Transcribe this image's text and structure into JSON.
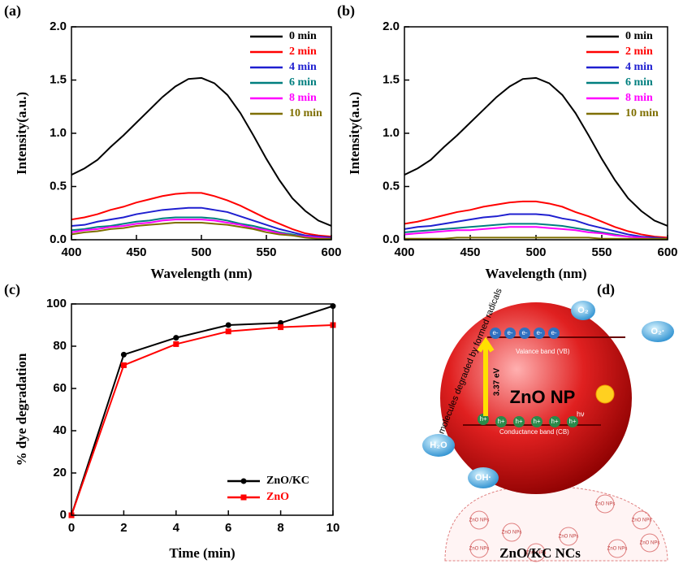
{
  "chart_data": [
    {
      "type": "line",
      "panel_label": "(a)",
      "xlabel": "Wavelength (nm)",
      "ylabel": "Intensity(a.u.)",
      "xlim": [
        400,
        600
      ],
      "ylim": [
        0,
        2.0
      ],
      "xticks": [
        400,
        450,
        500,
        550,
        600
      ],
      "yticks": [
        {
          "value": 0,
          "label": "0.0"
        },
        {
          "value": 0.5,
          "label": "0.5"
        },
        {
          "value": 1.0,
          "label": "1.0"
        },
        {
          "value": 1.5,
          "label": "1.5"
        },
        {
          "value": 2.0,
          "label": "2.0"
        }
      ],
      "legend": "upper right",
      "x": [
        400,
        410,
        420,
        430,
        440,
        450,
        460,
        470,
        480,
        490,
        500,
        510,
        520,
        530,
        540,
        550,
        560,
        570,
        580,
        590,
        600
      ],
      "series": [
        {
          "name": "0 min",
          "color": "#000000",
          "values": [
            0.61,
            0.67,
            0.75,
            0.87,
            0.98,
            1.1,
            1.22,
            1.34,
            1.44,
            1.51,
            1.52,
            1.47,
            1.36,
            1.19,
            0.98,
            0.76,
            0.56,
            0.39,
            0.27,
            0.18,
            0.13
          ]
        },
        {
          "name": "2 min",
          "color": "#ff0000",
          "values": [
            0.19,
            0.21,
            0.24,
            0.28,
            0.31,
            0.35,
            0.38,
            0.41,
            0.43,
            0.44,
            0.44,
            0.41,
            0.37,
            0.32,
            0.26,
            0.2,
            0.15,
            0.1,
            0.06,
            0.04,
            0.03
          ]
        },
        {
          "name": "4 min",
          "color": "#1f1fd0",
          "values": [
            0.13,
            0.14,
            0.17,
            0.19,
            0.21,
            0.24,
            0.26,
            0.28,
            0.29,
            0.3,
            0.3,
            0.28,
            0.26,
            0.22,
            0.18,
            0.14,
            0.1,
            0.07,
            0.04,
            0.03,
            0.02
          ]
        },
        {
          "name": "6 min",
          "color": "#007f7f",
          "values": [
            0.09,
            0.1,
            0.12,
            0.13,
            0.15,
            0.17,
            0.18,
            0.2,
            0.21,
            0.21,
            0.21,
            0.2,
            0.18,
            0.15,
            0.13,
            0.1,
            0.07,
            0.05,
            0.03,
            0.02,
            0.01
          ]
        },
        {
          "name": "8 min",
          "color": "#ff00ff",
          "values": [
            0.07,
            0.09,
            0.1,
            0.12,
            0.13,
            0.15,
            0.16,
            0.18,
            0.19,
            0.19,
            0.19,
            0.18,
            0.16,
            0.14,
            0.11,
            0.09,
            0.06,
            0.04,
            0.03,
            0.02,
            0.01
          ]
        },
        {
          "name": "10 min",
          "color": "#7f6f00",
          "values": [
            0.05,
            0.07,
            0.08,
            0.1,
            0.11,
            0.13,
            0.14,
            0.15,
            0.16,
            0.16,
            0.16,
            0.15,
            0.14,
            0.12,
            0.1,
            0.07,
            0.05,
            0.04,
            0.02,
            0.01,
            0.01
          ]
        }
      ]
    },
    {
      "type": "line",
      "panel_label": "(b)",
      "xlabel": "Wavelength (nm)",
      "ylabel": "Intensity(a.u.)",
      "xlim": [
        400,
        600
      ],
      "ylim": [
        0,
        2.0
      ],
      "xticks": [
        400,
        450,
        500,
        550,
        600
      ],
      "yticks": [
        {
          "value": 0,
          "label": "0.0"
        },
        {
          "value": 0.5,
          "label": "0.5"
        },
        {
          "value": 1.0,
          "label": "1.0"
        },
        {
          "value": 1.5,
          "label": "1.5"
        },
        {
          "value": 2.0,
          "label": "2.0"
        }
      ],
      "legend": "upper right",
      "x": [
        400,
        410,
        420,
        430,
        440,
        450,
        460,
        470,
        480,
        490,
        500,
        510,
        520,
        530,
        540,
        550,
        560,
        570,
        580,
        590,
        600
      ],
      "series": [
        {
          "name": "0 min",
          "color": "#000000",
          "values": [
            0.61,
            0.67,
            0.75,
            0.87,
            0.98,
            1.1,
            1.22,
            1.34,
            1.44,
            1.51,
            1.52,
            1.47,
            1.36,
            1.19,
            0.98,
            0.76,
            0.56,
            0.39,
            0.27,
            0.18,
            0.13
          ]
        },
        {
          "name": "2 min",
          "color": "#ff0000",
          "values": [
            0.15,
            0.17,
            0.2,
            0.23,
            0.26,
            0.28,
            0.31,
            0.33,
            0.35,
            0.36,
            0.36,
            0.34,
            0.31,
            0.26,
            0.22,
            0.17,
            0.12,
            0.08,
            0.05,
            0.03,
            0.02
          ]
        },
        {
          "name": "4 min",
          "color": "#1f1fd0",
          "values": [
            0.1,
            0.12,
            0.13,
            0.15,
            0.17,
            0.19,
            0.21,
            0.22,
            0.24,
            0.24,
            0.24,
            0.23,
            0.2,
            0.18,
            0.14,
            0.11,
            0.08,
            0.05,
            0.03,
            0.02,
            0.01
          ]
        },
        {
          "name": "6 min",
          "color": "#007f7f",
          "values": [
            0.07,
            0.08,
            0.09,
            0.1,
            0.11,
            0.12,
            0.13,
            0.14,
            0.15,
            0.15,
            0.15,
            0.14,
            0.13,
            0.11,
            0.09,
            0.07,
            0.05,
            0.03,
            0.02,
            0.01,
            0.01
          ]
        },
        {
          "name": "8 min",
          "color": "#ff00ff",
          "values": [
            0.05,
            0.06,
            0.07,
            0.08,
            0.09,
            0.09,
            0.1,
            0.11,
            0.12,
            0.12,
            0.12,
            0.11,
            0.1,
            0.09,
            0.07,
            0.06,
            0.04,
            0.03,
            0.02,
            0.01,
            0.01
          ]
        },
        {
          "name": "10 min",
          "color": "#7f6f00",
          "values": [
            0.01,
            0.01,
            0.01,
            0.01,
            0.02,
            0.02,
            0.02,
            0.02,
            0.02,
            0.02,
            0.02,
            0.02,
            0.02,
            0.02,
            0.02,
            0.01,
            0.01,
            0.01,
            0.01,
            0.01,
            0.01
          ]
        }
      ]
    },
    {
      "type": "line",
      "panel_label": "(c)",
      "xlabel": "Time (min)",
      "ylabel": "% dye degradation",
      "xlim": [
        0,
        10
      ],
      "ylim": [
        0,
        100
      ],
      "xticks": [
        0,
        2,
        4,
        6,
        8,
        10
      ],
      "yticks": [
        0,
        20,
        40,
        60,
        80,
        100
      ],
      "legend": "lower right",
      "x": [
        0,
        2,
        4,
        6,
        8,
        10
      ],
      "series": [
        {
          "name": "ZnO/KC",
          "color": "#000000",
          "marker": "circle",
          "values": [
            0,
            76,
            84,
            90,
            91,
            99
          ]
        },
        {
          "name": "ZnO",
          "color": "#ff0000",
          "marker": "square",
          "values": [
            0,
            71,
            81,
            87,
            89,
            90
          ]
        }
      ]
    }
  ],
  "diagram": {
    "panel_label": "(d)",
    "caption": "ZnO/KC NCs",
    "side_note": "Dye molecules degraded by formed radicals",
    "o2": "O₂",
    "o2_radical": "O₂·",
    "electron": "e-",
    "valence_band": "Valance band (VB)",
    "gap": "3.37 eV",
    "particle": "ZnO NP",
    "light": "hν",
    "h2o": "H₂O",
    "hole": "h+",
    "conduction_band": "Conductance band (CB)",
    "oh_radical": "OH·",
    "np_label": "ZnO NPs"
  }
}
